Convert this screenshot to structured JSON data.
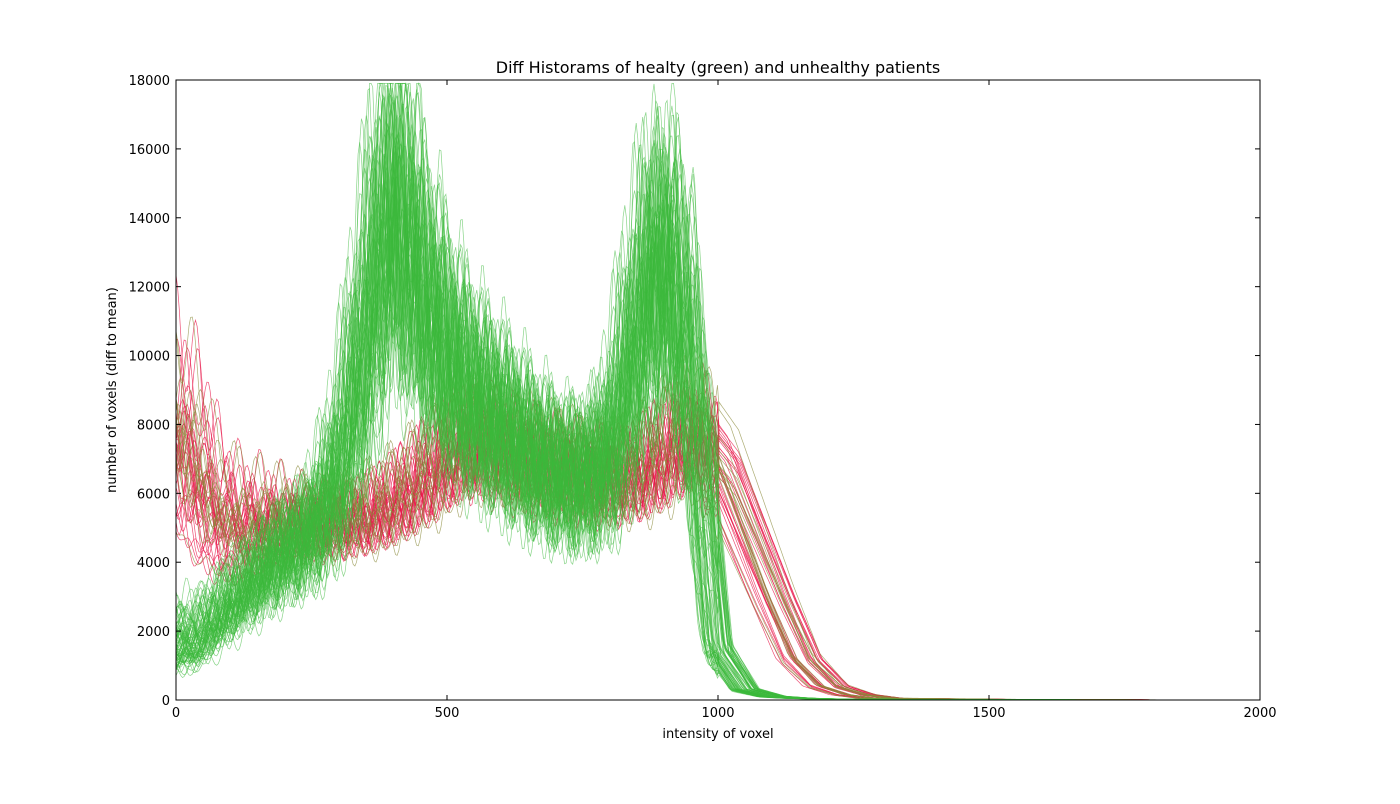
{
  "chart_data": {
    "type": "line",
    "title": "Diff Historams of healty (green) and unhealthy patients",
    "xlabel": "intensity of voxel",
    "ylabel": "number of voxels (diff to mean)",
    "xlim": [
      0,
      2000
    ],
    "ylim": [
      0,
      18000
    ],
    "xticks": [
      0,
      500,
      1000,
      1500,
      2000
    ],
    "yticks": [
      0,
      2000,
      4000,
      6000,
      8000,
      10000,
      12000,
      14000,
      16000,
      18000
    ],
    "grid": false,
    "legend": "none",
    "colors": {
      "healthy": "#3cb93c",
      "unhealthy": "#e8174a",
      "unhealthy_alt": "#8a8a3a"
    },
    "series": [
      {
        "group": "healthy",
        "x": [
          0,
          20,
          50,
          100,
          150,
          200,
          250,
          300,
          350,
          380,
          400,
          420,
          450,
          500,
          550,
          600,
          650,
          700,
          750,
          800,
          850,
          880,
          900,
          930,
          950,
          1000,
          1050,
          1100,
          1150,
          1200,
          1300,
          1500,
          1900
        ],
        "y": [
          1800,
          1500,
          2000,
          2800,
          3600,
          4300,
          4800,
          6500,
          10500,
          13500,
          14200,
          13800,
          12000,
          10000,
          8800,
          8000,
          7200,
          6600,
          6400,
          7000,
          10500,
          12500,
          13000,
          11500,
          9500,
          1500,
          300,
          100,
          50,
          30,
          20,
          10,
          0
        ]
      },
      {
        "group": "unhealthy",
        "x": [
          0,
          20,
          50,
          100,
          150,
          200,
          250,
          300,
          350,
          400,
          450,
          500,
          550,
          600,
          650,
          700,
          750,
          800,
          850,
          900,
          950,
          1000,
          1050,
          1100,
          1150,
          1200,
          1250,
          1300,
          1500,
          1900
        ],
        "y": [
          8000,
          7200,
          5800,
          5000,
          5100,
          5200,
          5200,
          5200,
          5400,
          5800,
          6400,
          7200,
          7600,
          7300,
          7000,
          6800,
          6600,
          6500,
          6600,
          7200,
          8000,
          7000,
          5000,
          3000,
          1200,
          400,
          150,
          50,
          20,
          0
        ]
      }
    ]
  }
}
